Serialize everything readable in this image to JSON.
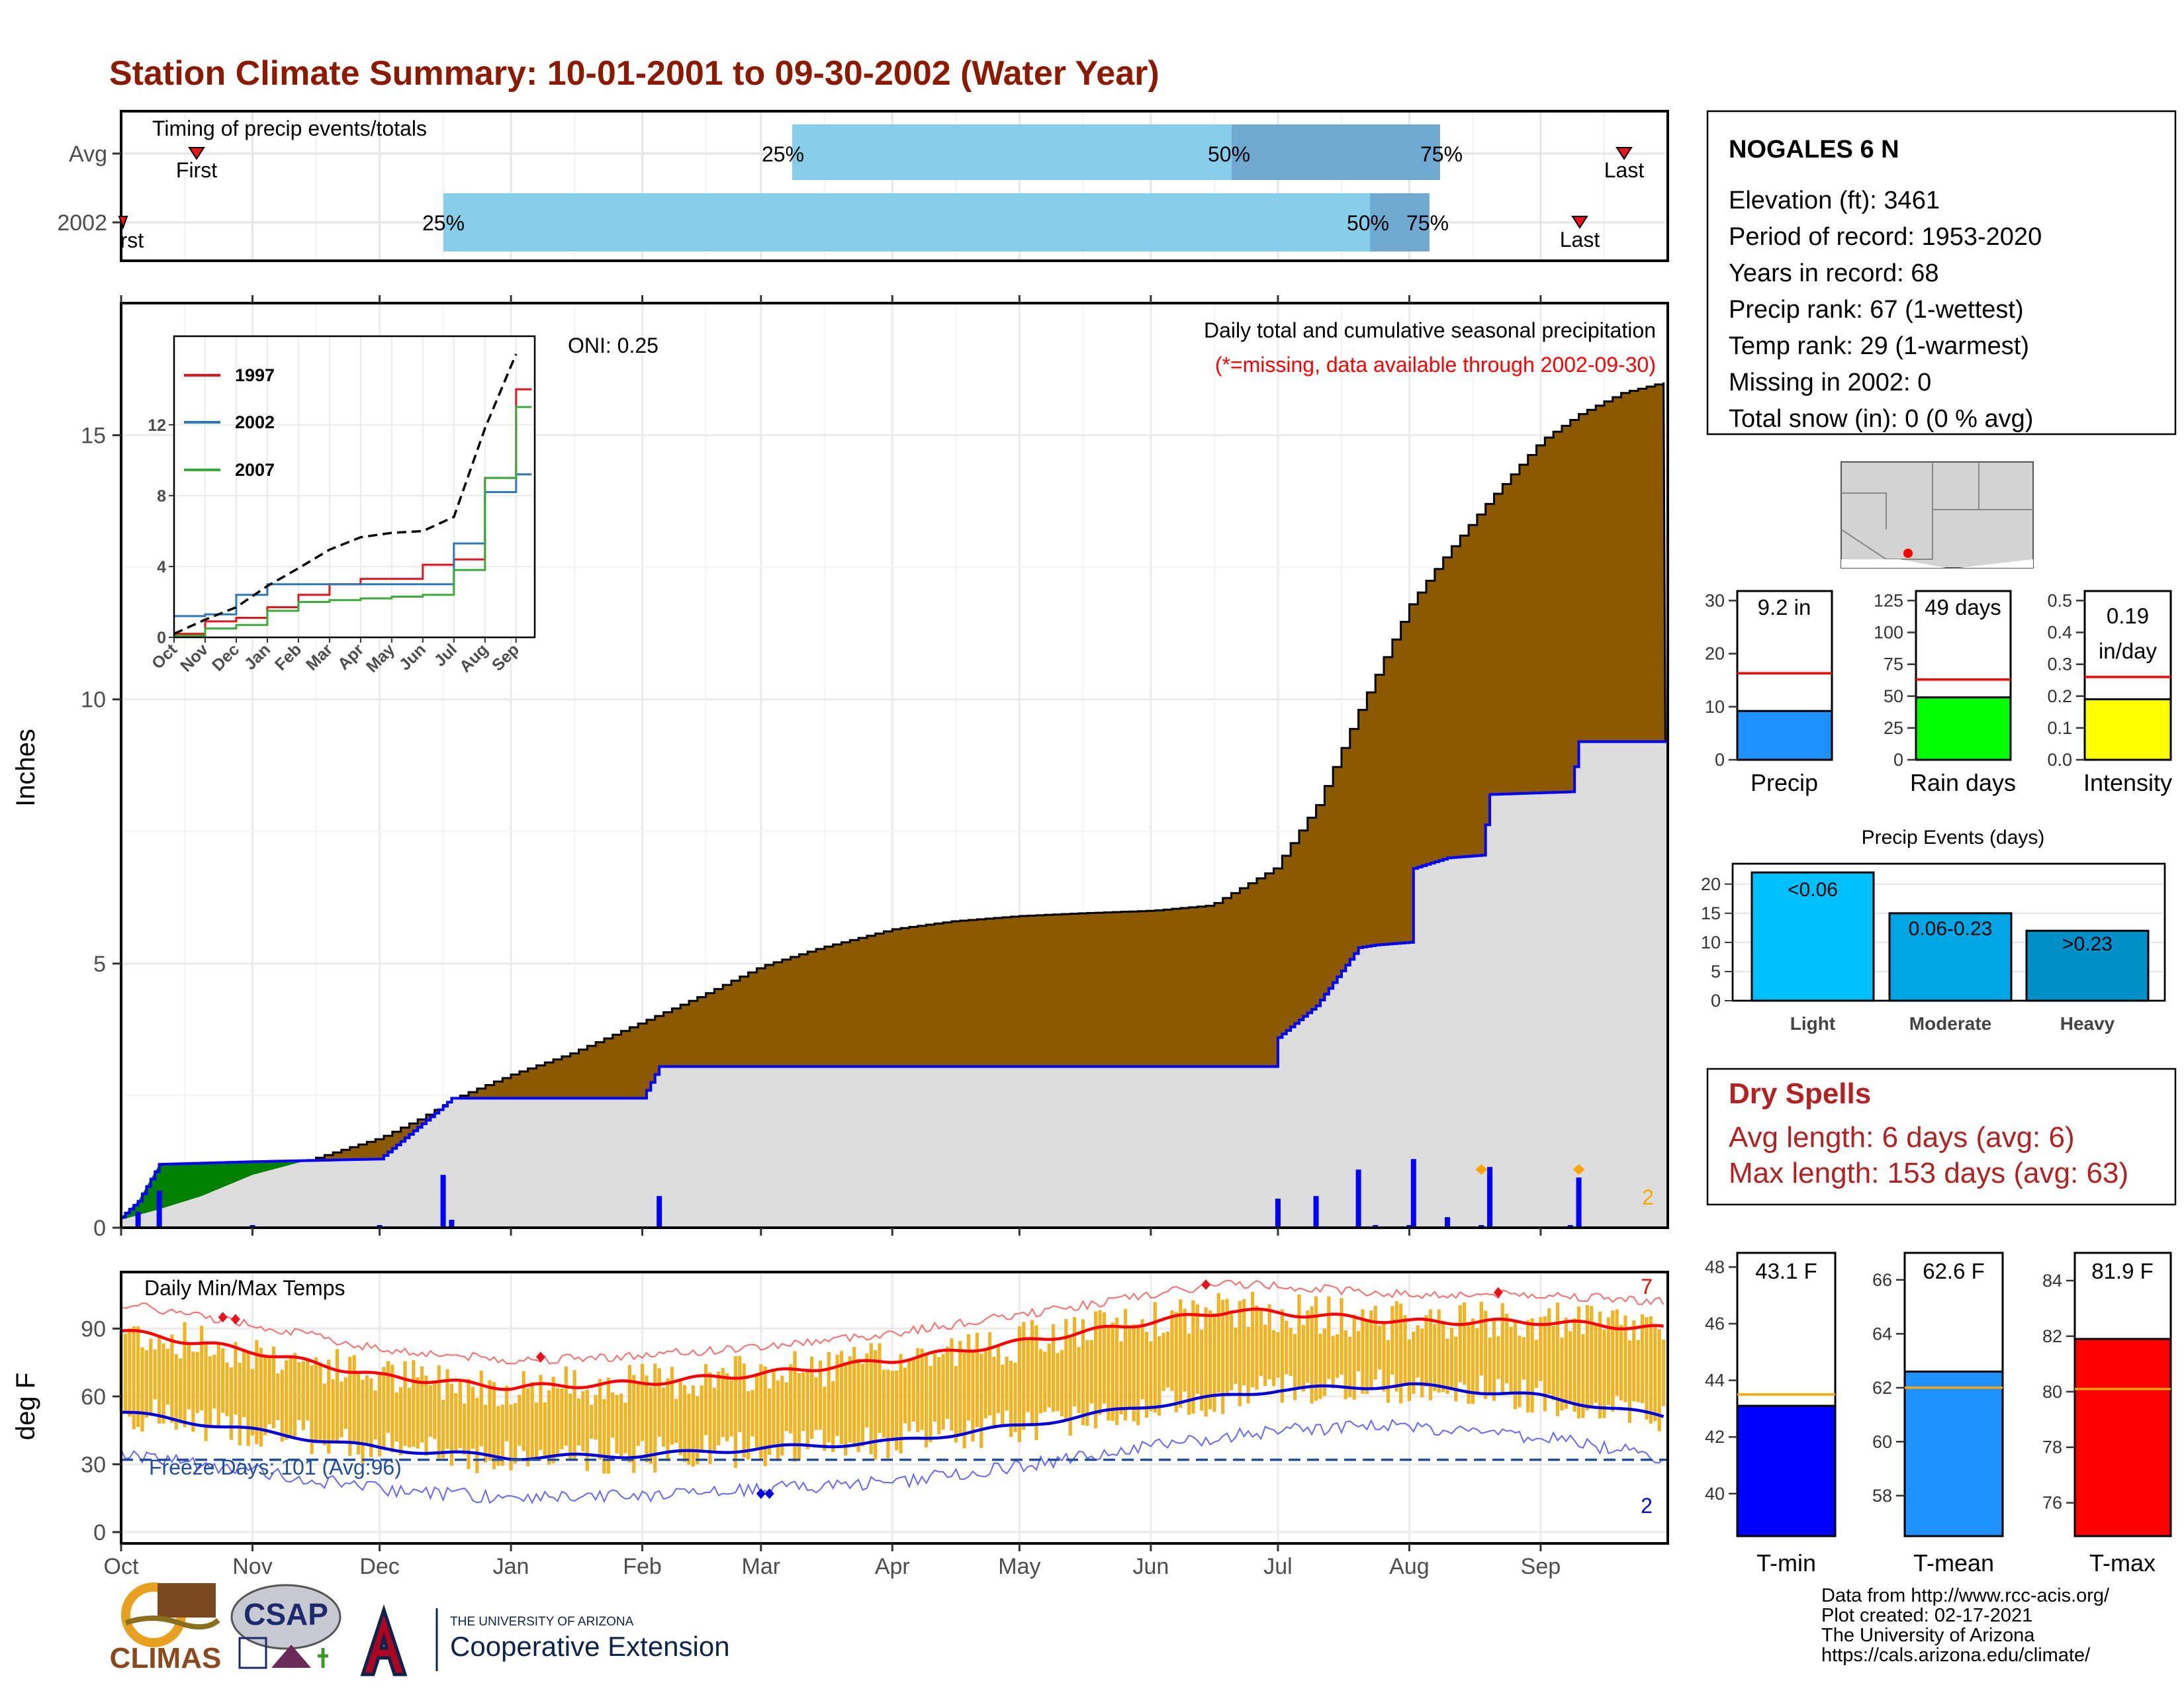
{
  "title": "Station Climate Summary: 10-01-2001 to 09-30-2002 (Water Year)",
  "colors": {
    "title": "#8B1A00",
    "precip_fill": "#8B5A00",
    "normal_fill": "#DDDDDD",
    "surplus_fill": "#008000",
    "blue_line": "#0000FF",
    "light_blue_bar": "#87CEEB",
    "mid_blue_bar": "#6FA8D0",
    "temp_bar": "#F0B323",
    "red_line": "#FF0000",
    "dry_spell_text": "#B22222"
  },
  "timing_panel": {
    "label": "Timing of precip events/totals",
    "row_labels": [
      "Avg",
      "2002"
    ],
    "avg": {
      "first_label": "First",
      "last_label": "Last",
      "p25": "25%",
      "p50": "50%",
      "p75": "75%"
    },
    "year": {
      "first_label": "First",
      "last_label": "Last",
      "p25": "25%",
      "p50": "50%",
      "p75": "75%"
    }
  },
  "months": [
    "Oct",
    "Nov",
    "Dec",
    "Jan",
    "Feb",
    "Mar",
    "Apr",
    "May",
    "Jun",
    "Jul",
    "Aug",
    "Sep"
  ],
  "precip_panel": {
    "ylabel": "Inches",
    "header": "Daily total and cumulative seasonal precipitation",
    "missing_note": "(*=missing, data available through 2002-09-30)",
    "oni": "ONI: 0.25",
    "count_label": "2",
    "yticks": [
      "0",
      "5",
      "10",
      "15"
    ]
  },
  "inset": {
    "legend": [
      "1997",
      "2002",
      "2007"
    ],
    "yticks": [
      "0",
      "4",
      "8",
      "12"
    ],
    "months": [
      "Oct",
      "Nov",
      "Dec",
      "Jan",
      "Feb",
      "Mar",
      "Apr",
      "May",
      "Jun",
      "Jul",
      "Aug",
      "Sep"
    ]
  },
  "temp_panel": {
    "ylabel": "deg F",
    "label": "Daily Min/Max Temps",
    "freeze_label": "Freeze Days: 101 (Avg:96)",
    "max_count": "7",
    "min_count": "2",
    "yticks": [
      "0",
      "30",
      "60",
      "90"
    ]
  },
  "station": {
    "name": "NOGALES 6 N",
    "lines": [
      "Elevation (ft): 3461",
      "Period of record: 1953-2020",
      "Years in record: 68",
      "Precip rank: 67 (1-wettest)",
      "Temp rank: 29 (1-warmest)",
      "Missing in 2002: 0",
      "Total snow (in): 0 (0 % avg)"
    ]
  },
  "mini_bars": [
    {
      "label": "Precip",
      "value_label": "9.2 in",
      "yticks": [
        "0",
        "10",
        "20",
        "30"
      ]
    },
    {
      "label": "Rain days",
      "value_label": "49 days",
      "yticks": [
        "0",
        "25",
        "50",
        "75",
        "100",
        "125"
      ]
    },
    {
      "label": "Intensity",
      "value_label": "0.19",
      "value_label2": "in/day",
      "yticks": [
        "0.0",
        "0.1",
        "0.2",
        "0.3",
        "0.4",
        "0.5"
      ]
    }
  ],
  "precip_events": {
    "title": "Precip Events (days)",
    "yticks": [
      "0",
      "5",
      "10",
      "15",
      "20"
    ],
    "bars": [
      {
        "label": "Light",
        "range": "<0.06"
      },
      {
        "label": "Moderate",
        "range": "0.06-0.23"
      },
      {
        "label": "Heavy",
        "range": ">0.23"
      }
    ]
  },
  "dry_spells": {
    "title": "Dry Spells",
    "avg": "Avg length: 6 days (avg: 6)",
    "max": "Max length: 153 days (avg: 63)"
  },
  "temp_bars": [
    {
      "label": "T-min",
      "value_label": "43.1 F",
      "yticks": [
        "40",
        "42",
        "44",
        "46",
        "48"
      ]
    },
    {
      "label": "T-mean",
      "value_label": "62.6 F",
      "yticks": [
        "58",
        "60",
        "62",
        "64",
        "66"
      ]
    },
    {
      "label": "T-max",
      "value_label": "81.9 F",
      "yticks": [
        "76",
        "78",
        "80",
        "82",
        "84"
      ]
    }
  ],
  "footer": {
    "lines": [
      "Data from http://www.rcc-acis.org/",
      "Plot created: 02-17-2021",
      "The University of Arizona",
      "https://cals.arizona.edu/climate/"
    ],
    "logo_climas": "CLIMAS",
    "logo_csap": "CSAP",
    "logo_ua_small": "THE UNIVERSITY OF ARIZONA",
    "logo_ua_large": "Cooperative Extension"
  },
  "chart_data": [
    {
      "type": "bar",
      "name": "timing",
      "rows": [
        "Avg",
        "2002"
      ],
      "avg": {
        "first": "Oct 28",
        "p25": "Mar 1",
        "p50": "Jun 19",
        "p75": "Jul 20",
        "last": "Sep 28"
      },
      "year": {
        "first": "Oct 1",
        "p25": "Dec 16",
        "p50": "Jul 22",
        "p75": "Aug 2",
        "last": "Sep 20"
      }
    },
    {
      "type": "area",
      "title": "Daily total and cumulative seasonal precipitation",
      "ylabel": "Inches",
      "ylim": [
        0,
        17.5
      ],
      "cumulative_normal": {
        "x": [
          "10-01",
          "10-10",
          "10-20",
          "11-01",
          "11-15",
          "12-01",
          "12-10",
          "12-20",
          "01-01",
          "01-15",
          "02-01",
          "02-15",
          "03-01",
          "03-15",
          "04-01",
          "04-15",
          "05-01",
          "05-15",
          "06-01",
          "06-15",
          "06-30",
          "07-10",
          "07-20",
          "08-01",
          "08-10",
          "08-20",
          "09-01",
          "09-10",
          "09-20",
          "09-30"
        ],
        "values": [
          0.15,
          0.35,
          0.6,
          1.0,
          1.3,
          1.7,
          2.05,
          2.5,
          2.9,
          3.3,
          3.9,
          4.4,
          4.95,
          5.3,
          5.65,
          5.8,
          5.9,
          5.95,
          6.0,
          6.1,
          6.8,
          8.0,
          9.8,
          11.8,
          12.8,
          13.8,
          14.9,
          15.4,
          15.8,
          16.0
        ]
      },
      "cumulative_2002": {
        "x": [
          "10-01",
          "10-05",
          "10-10",
          "11-01",
          "12-01",
          "12-16",
          "12-18",
          "02-01",
          "02-05",
          "06-30",
          "07-01",
          "07-10",
          "07-20",
          "07-24",
          "08-01",
          "08-02",
          "08-10",
          "08-18",
          "08-20",
          "09-08",
          "09-10",
          "09-30"
        ],
        "values": [
          0.2,
          0.5,
          1.2,
          1.25,
          1.3,
          2.3,
          2.45,
          2.45,
          3.05,
          3.05,
          3.6,
          4.2,
          5.3,
          5.35,
          5.4,
          6.8,
          7.0,
          7.05,
          8.2,
          8.25,
          9.2,
          9.2
        ]
      }
    },
    {
      "type": "line",
      "name": "inset cumulative precipitation",
      "series": [
        {
          "name": "1997",
          "x": [
            "Oct",
            "Nov",
            "Dec",
            "Jan",
            "Feb",
            "Mar",
            "Apr",
            "May",
            "Jun",
            "Jul",
            "Aug",
            "Sep"
          ],
          "values": [
            0.2,
            0.9,
            1.1,
            1.7,
            2.4,
            3.0,
            3.3,
            3.3,
            4.1,
            4.4,
            9.0,
            14.0
          ]
        },
        {
          "name": "2002",
          "x": [
            "Oct",
            "Nov",
            "Dec",
            "Jan",
            "Feb",
            "Mar",
            "Apr",
            "May",
            "Jun",
            "Jul",
            "Aug",
            "Sep"
          ],
          "values": [
            1.2,
            1.3,
            2.4,
            3.0,
            3.0,
            3.0,
            3.0,
            3.0,
            3.0,
            5.3,
            8.2,
            9.2
          ]
        },
        {
          "name": "2007",
          "x": [
            "Oct",
            "Nov",
            "Dec",
            "Jan",
            "Feb",
            "Mar",
            "Apr",
            "May",
            "Jun",
            "Jul",
            "Aug",
            "Sep"
          ],
          "values": [
            0.1,
            0.5,
            0.7,
            1.5,
            2.0,
            2.1,
            2.2,
            2.3,
            2.4,
            3.8,
            9.0,
            13.0
          ]
        },
        {
          "x": [
            "Oct",
            "Nov",
            "Dec",
            "Jan",
            "Feb",
            "Mar",
            "Apr",
            "May",
            "Jun",
            "Jul",
            "Aug",
            "Sep"
          ],
          "values": [
            0.2,
            1.0,
            1.7,
            2.9,
            3.9,
            4.95,
            5.65,
            5.9,
            6.0,
            6.8,
            11.8,
            16.0
          ]
        }
      ],
      "yticks": [
        0,
        4,
        8,
        12
      ]
    },
    {
      "type": "bar",
      "name": "daily min/max temps",
      "ylabel": "deg F",
      "ylim": [
        -5,
        115
      ],
      "normal_max": {
        "x": [
          "10-01",
          "11-01",
          "12-01",
          "01-01",
          "02-01",
          "03-01",
          "04-01",
          "05-01",
          "06-01",
          "06-20",
          "07-01",
          "08-01",
          "09-01",
          "09-30"
        ],
        "values": [
          89,
          80,
          69,
          64,
          66,
          70,
          76,
          84,
          93,
          98,
          97,
          93,
          93,
          90
        ]
      },
      "normal_min": {
        "x": [
          "10-01",
          "11-01",
          "12-01",
          "01-01",
          "02-01",
          "03-01",
          "04-01",
          "05-01",
          "06-01",
          "07-01",
          "08-01",
          "09-01",
          "09-30"
        ],
        "values": [
          53,
          45,
          37,
          33,
          34,
          37,
          40,
          47,
          56,
          63,
          65,
          60,
          51
        ]
      },
      "freeze_line": 32
    },
    {
      "type": "bar",
      "name": "Precip",
      "value": 9.2,
      "normal": 16.3,
      "ylim": [
        0,
        30
      ]
    },
    {
      "type": "bar",
      "name": "Rain days",
      "value": 49,
      "normal": 63,
      "ylim": [
        0,
        125
      ]
    },
    {
      "type": "bar",
      "name": "Intensity",
      "value": 0.19,
      "normal": 0.26,
      "ylim": [
        0,
        0.5
      ]
    },
    {
      "type": "bar",
      "name": "Precip Events (days)",
      "categories": [
        "Light",
        "Moderate",
        "Heavy"
      ],
      "values": [
        22,
        15,
        12
      ],
      "ylim": [
        0,
        22
      ]
    },
    {
      "type": "bar",
      "name": "T-min",
      "value": 43.1,
      "normal": 43.5,
      "ylim": [
        38.5,
        48.5
      ]
    },
    {
      "type": "bar",
      "name": "T-mean",
      "value": 62.6,
      "normal": 62.0,
      "ylim": [
        56.5,
        67
      ]
    },
    {
      "type": "bar",
      "name": "T-max",
      "value": 81.9,
      "normal": 80.1,
      "ylim": [
        74.8,
        85
      ]
    }
  ]
}
